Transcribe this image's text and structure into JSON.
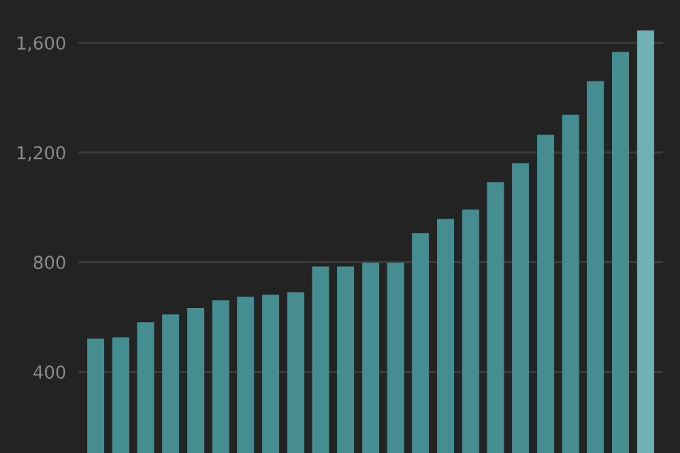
{
  "chart_data": {
    "type": "bar",
    "categories": [
      null,
      null,
      null,
      null,
      null,
      null,
      null,
      null,
      null,
      null,
      null,
      null,
      null,
      null,
      null,
      null,
      null,
      null,
      null,
      null,
      null,
      null,
      null
    ],
    "values": [
      521,
      526,
      581,
      609,
      633,
      661,
      674,
      681,
      690,
      784,
      784,
      798,
      798,
      906,
      958,
      992,
      1092,
      1161,
      1264,
      1338,
      1460,
      1567,
      1645
    ],
    "colors": [
      "#468d92",
      "#468d92",
      "#468d92",
      "#468d92",
      "#468d92",
      "#468d92",
      "#468d92",
      "#468d92",
      "#468d92",
      "#468d92",
      "#468d92",
      "#468d92",
      "#468d92",
      "#468d92",
      "#468d92",
      "#468d92",
      "#468d92",
      "#468d92",
      "#468d92",
      "#468d92",
      "#468d92",
      "#468d92",
      "#6fb1b4"
    ],
    "ylim": [
      104,
      1756
    ],
    "yticks": [
      {
        "value": 400,
        "label": "400"
      },
      {
        "value": 800,
        "label": "800"
      },
      {
        "value": 1200,
        "label": "1,200"
      },
      {
        "value": 1600,
        "label": "1,600"
      }
    ],
    "grid": "y",
    "tick_labels": "y"
  }
}
